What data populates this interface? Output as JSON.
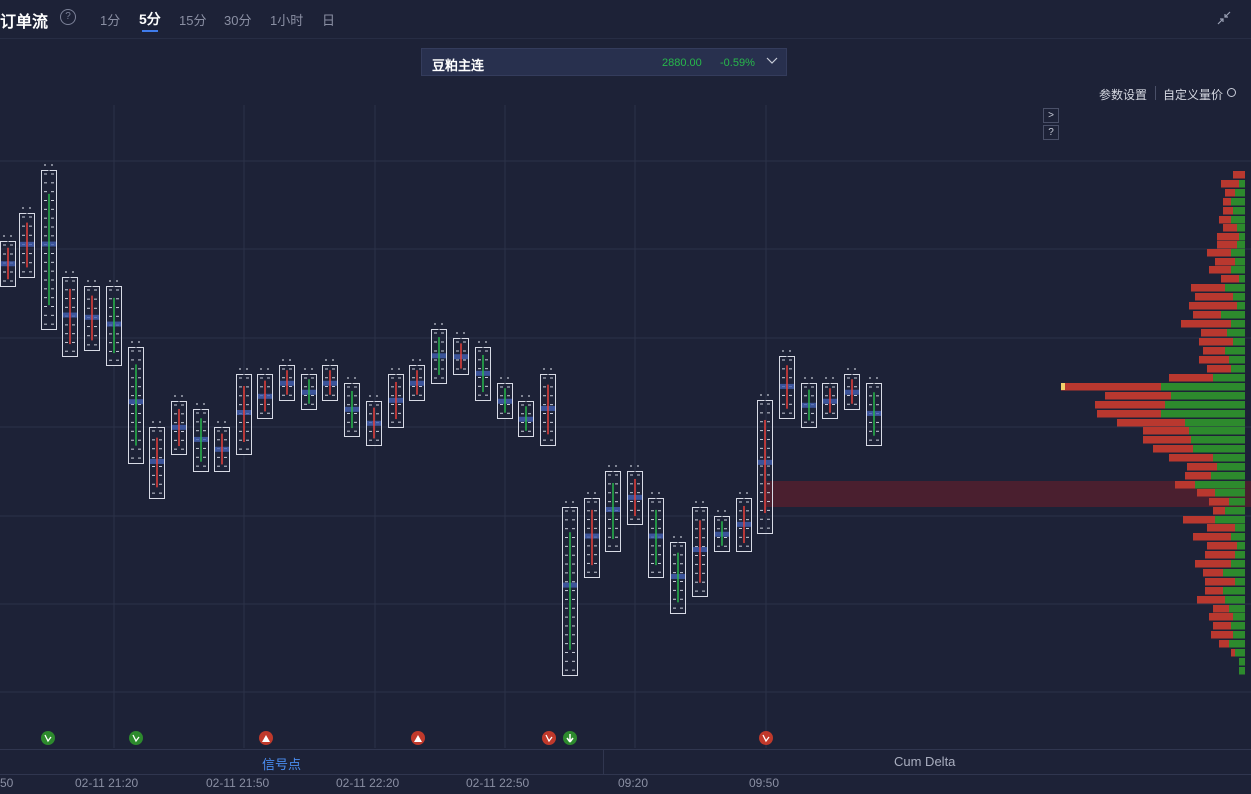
{
  "header": {
    "title": "订单流",
    "timeframes": [
      "1分",
      "5分",
      "15分",
      "30分",
      "1小时",
      "日"
    ],
    "active_timeframe": "5分"
  },
  "symbol": {
    "name": "豆粕主连",
    "price": "2880.00",
    "change": "-0.59%"
  },
  "toolbar": {
    "params_label": "参数设置",
    "custom_label": "自定义量价",
    "expand_label": ">",
    "help_label": "?"
  },
  "tabs": {
    "signal": "信号点",
    "cum_delta": "Cum Delta"
  },
  "time_axis": [
    "50",
    "02-11 21:20",
    "02-11 21:50",
    "02-11 22:20",
    "02-11 22:50",
    "09:20",
    "09:50"
  ],
  "colors": {
    "background": "#1d2237",
    "up": "#2d8a2d",
    "down": "#c0392b",
    "accent": "#3f7bea"
  },
  "signals": [
    {
      "type": "buy-hook-icon",
      "color": "green"
    },
    {
      "type": "buy-hook-icon",
      "color": "green"
    },
    {
      "type": "up-triangle-icon",
      "color": "red"
    },
    {
      "type": "up-triangle-icon",
      "color": "red"
    },
    {
      "type": "fill-icon",
      "color": "red"
    },
    {
      "type": "down-arrow-icon",
      "color": "green"
    },
    {
      "type": "sell-hook-icon",
      "color": "red"
    }
  ]
}
